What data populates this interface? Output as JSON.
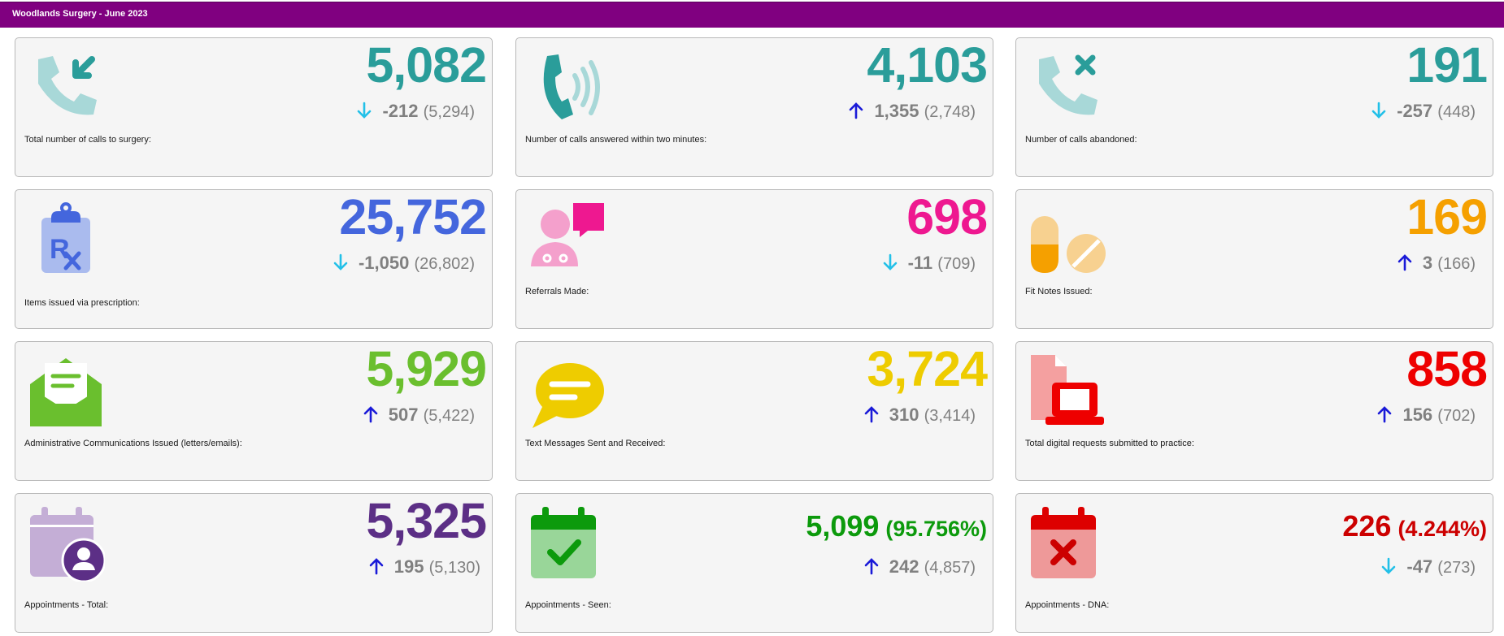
{
  "header": {
    "title": "Woodlands Surgery - June 2023"
  },
  "colors": {
    "teal": "#2a9d9a",
    "blue": "#4466dd",
    "pink": "#ee1890",
    "orange": "#f5a000",
    "green": "#6abf2e",
    "yellow": "#eecc00",
    "red": "#ee0000",
    "purple": "#5c2f86",
    "dark_green": "#0c9a0c",
    "dark_red": "#cc0000",
    "arrow_up": "#1a1ad8",
    "arrow_down": "#22c0e8",
    "muted": "#808080"
  },
  "cards": [
    {
      "icon": "phone-incoming-icon",
      "value": "5,082",
      "change": "-212",
      "previous": "(5,294)",
      "direction": "down",
      "label": "Total number of calls to surgery:"
    },
    {
      "icon": "phone-ringing-icon",
      "value": "4,103",
      "change": "1,355",
      "previous": "(2,748)",
      "direction": "up",
      "label": "Number of calls answered within two minutes:"
    },
    {
      "icon": "phone-abandoned-icon",
      "value": "191",
      "change": "-257",
      "previous": "(448)",
      "direction": "down",
      "label": "Number of calls abandoned:"
    },
    {
      "icon": "prescription-clipboard-icon",
      "value": "25,752",
      "change": "-1,050",
      "previous": "(26,802)",
      "direction": "down",
      "label": "Items issued via prescription:"
    },
    {
      "icon": "doctor-chat-icon",
      "value": "698",
      "change": "-11",
      "previous": "(709)",
      "direction": "down",
      "label": "Referrals Made:"
    },
    {
      "icon": "pills-icon",
      "value": "169",
      "change": "3",
      "previous": "(166)",
      "direction": "up",
      "label": "Fit Notes Issued:"
    },
    {
      "icon": "envelope-letter-icon",
      "value": "5,929",
      "change": "507",
      "previous": "(5,422)",
      "direction": "up",
      "label": "Administrative Communications Issued (letters/emails):"
    },
    {
      "icon": "speech-bubble-icon",
      "value": "3,724",
      "change": "310",
      "previous": "(3,414)",
      "direction": "up",
      "label": "Text Messages Sent and Received:"
    },
    {
      "icon": "file-laptop-icon",
      "value": "858",
      "change": "156",
      "previous": "(702)",
      "direction": "up",
      "label": "Total digital requests submitted to practice:"
    },
    {
      "icon": "calendar-user-icon",
      "value": "5,325",
      "change": "195",
      "previous": "(5,130)",
      "direction": "up",
      "label": "Appointments - Total:"
    },
    {
      "icon": "calendar-check-icon",
      "value": "5,099",
      "percent": "(95.756%)",
      "change": "242",
      "previous": "(4,857)",
      "direction": "up",
      "label": "Appointments - Seen:"
    },
    {
      "icon": "calendar-x-icon",
      "value": "226",
      "percent": "(4.244%)",
      "change": "-47",
      "previous": "(273)",
      "direction": "down",
      "label": "Appointments - DNA:"
    }
  ]
}
